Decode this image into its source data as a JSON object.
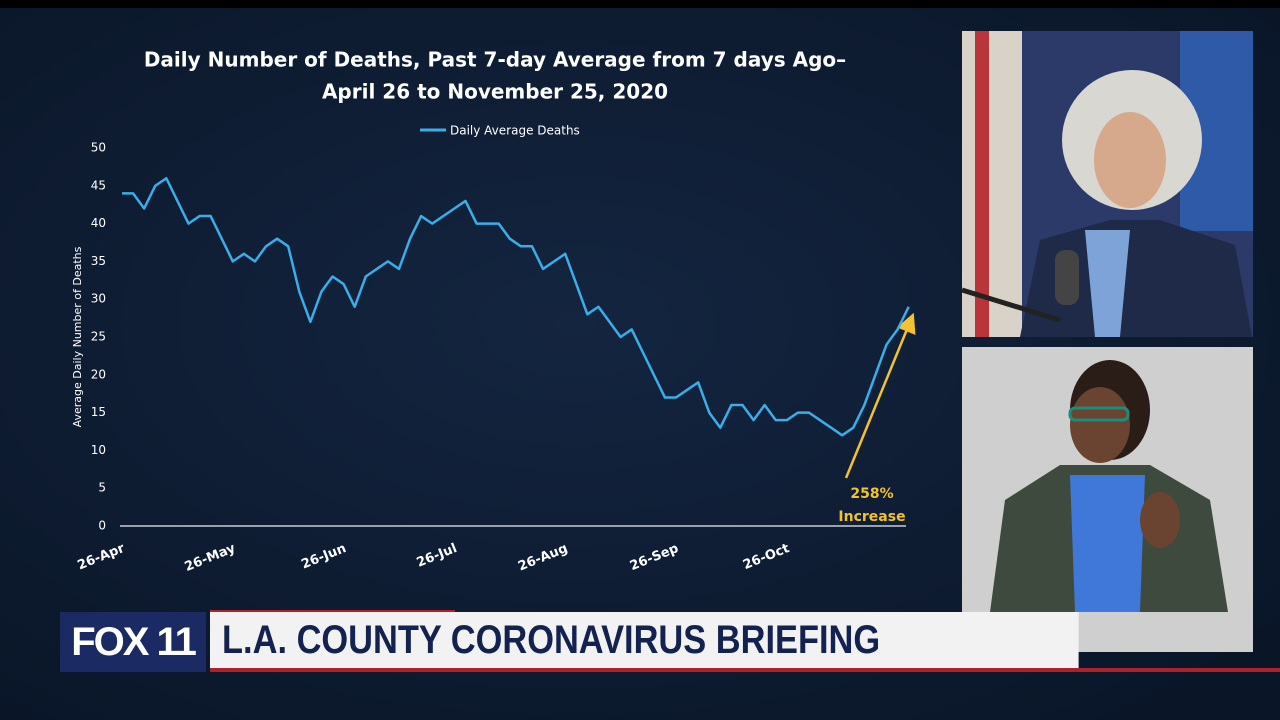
{
  "chart_data": {
    "type": "line",
    "title": [
      "Daily Number of Deaths, Past 7-day Average from 7 days Ago–",
      "April 26 to November 25, 2020"
    ],
    "y_label": "Average Daily Number of Deaths",
    "categories": [
      "26-Apr",
      null,
      null,
      null,
      null,
      null,
      null,
      null,
      null,
      null,
      "26-May",
      null,
      null,
      null,
      null,
      null,
      null,
      null,
      null,
      null,
      "26-Jun",
      null,
      null,
      null,
      null,
      null,
      null,
      null,
      null,
      null,
      "26-Jul",
      null,
      null,
      null,
      null,
      null,
      null,
      null,
      null,
      null,
      "26-Aug",
      null,
      null,
      null,
      null,
      null,
      null,
      null,
      null,
      null,
      "26-Sep",
      null,
      null,
      null,
      null,
      null,
      null,
      null,
      null,
      null,
      "26-Oct",
      null,
      null,
      null,
      null,
      null,
      null,
      null,
      null,
      null,
      null,
      null
    ],
    "series": [
      {
        "name": "Daily Average Deaths",
        "color": "#3aaee8",
        "values": [
          44,
          44,
          42,
          45,
          46,
          43,
          40,
          41,
          41,
          38,
          35,
          36,
          35,
          37,
          38,
          37,
          31,
          27,
          31,
          33,
          32,
          29,
          33,
          34,
          35,
          34,
          38,
          41,
          40,
          41,
          42,
          43,
          40,
          40,
          40,
          38,
          37,
          37,
          34,
          35,
          36,
          32,
          28,
          29,
          27,
          25,
          26,
          23,
          20,
          17,
          17,
          18,
          19,
          15,
          13,
          16,
          16,
          14,
          16,
          14,
          14,
          15,
          15,
          14,
          13,
          12,
          13,
          16,
          20,
          24,
          26,
          29
        ]
      }
    ],
    "ylim": [
      0,
      50
    ],
    "yticks": [
      0,
      5,
      10,
      15,
      20,
      25,
      30,
      35,
      40,
      45,
      50
    ],
    "legend": "top",
    "annotations": [
      "258%",
      "Increase"
    ]
  },
  "broadcast": {
    "logo": "FOX 11",
    "headline": "L.A. COUNTY CORONAVIRUS BRIEFING"
  }
}
